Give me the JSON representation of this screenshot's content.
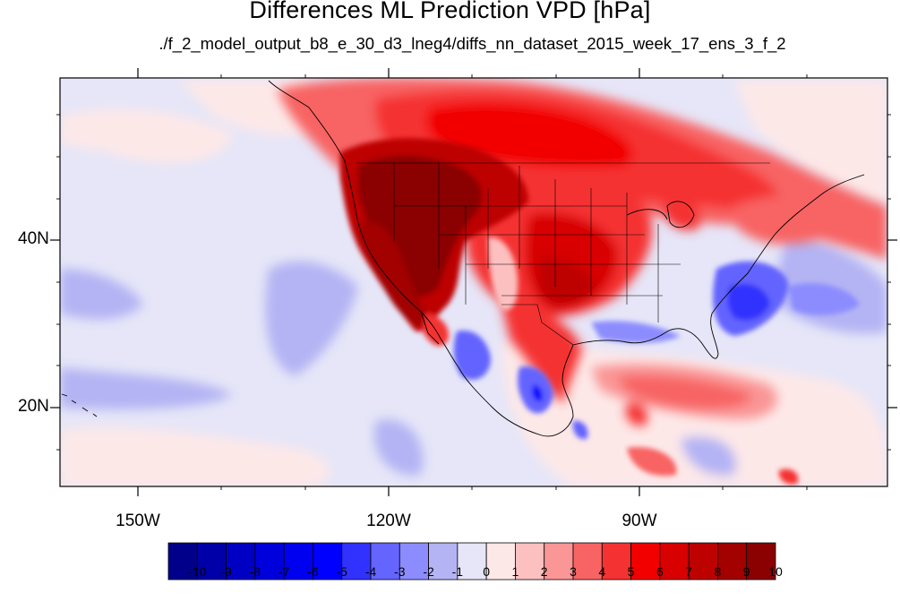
{
  "title": "Differences ML Prediction VPD [hPa]",
  "subtitle": "./f_2_model_output_b8_e_30_d3_lneg4/diffs_nn_dataset_2015_week_17_ens_3_f_2",
  "map": {
    "lon_range": [
      -160,
      -60
    ],
    "lat_range": [
      10,
      59
    ],
    "x_tick_labels": [
      "150W",
      "120W",
      "90W"
    ],
    "y_tick_labels": [
      "40N",
      "20N"
    ]
  },
  "colorbar": {
    "labels": [
      "-10",
      "-9",
      "-8",
      "-7",
      "-6",
      "-5",
      "-4",
      "-3",
      "-2",
      "-1",
      "0",
      "1",
      "2",
      "3",
      "4",
      "5",
      "6",
      "7",
      "8",
      "9",
      "10"
    ],
    "colors": [
      "#00008b",
      "#0000a8",
      "#0000c4",
      "#0000dc",
      "#0000f0",
      "#0000ff",
      "#3232ff",
      "#6464ff",
      "#8c8cff",
      "#b4b4f4",
      "#e6e6f8",
      "#fde8e8",
      "#fcc0c0",
      "#fa9696",
      "#f86464",
      "#f53232",
      "#f20000",
      "#d80000",
      "#bd0000",
      "#a30000",
      "#8b0000"
    ]
  }
}
